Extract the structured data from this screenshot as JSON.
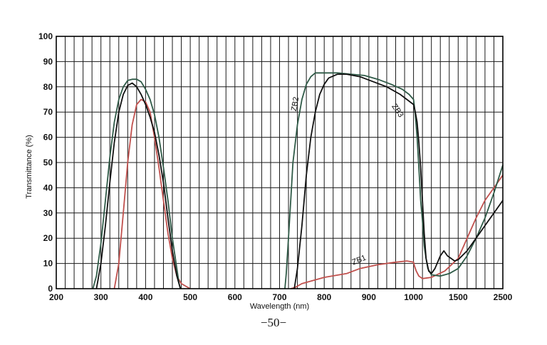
{
  "page_number": "−50−",
  "chart_data": {
    "type": "line",
    "title": "",
    "xlabel": "Wavelength (nm)",
    "ylabel": "Transmittance (%)",
    "ylim": [
      0,
      100
    ],
    "x_ticks": [
      "200",
      "300",
      "400",
      "500",
      "600",
      "700",
      "800",
      "900",
      "1000",
      "1500",
      "2500"
    ],
    "y_ticks": [
      "0",
      "10",
      "20",
      "30",
      "40",
      "50",
      "60",
      "70",
      "80",
      "90",
      "100"
    ],
    "grid": true,
    "colors": {
      "ZB1": "#c0504d",
      "ZB2": "#2f5a47",
      "ZB3": "#111111"
    },
    "series": [
      {
        "name": "ZB1",
        "segments": [
          [
            [
              330,
              0
            ],
            [
              340,
              10
            ],
            [
              350,
              30
            ],
            [
              360,
              50
            ],
            [
              370,
              65
            ],
            [
              380,
              73
            ],
            [
              390,
              75
            ],
            [
              400,
              74
            ],
            [
              410,
              70
            ],
            [
              420,
              60
            ],
            [
              430,
              48
            ],
            [
              440,
              35
            ],
            [
              450,
              22
            ],
            [
              460,
              12
            ],
            [
              470,
              5
            ],
            [
              480,
              2
            ],
            [
              490,
              1
            ],
            [
              500,
              0
            ]
          ],
          [
            [
              725,
              0
            ],
            [
              735,
              0.5
            ],
            [
              750,
              2
            ],
            [
              780,
              3.5
            ],
            [
              800,
              4.5
            ],
            [
              850,
              6
            ],
            [
              880,
              8
            ],
            [
              920,
              9.5
            ],
            [
              960,
              10.5
            ],
            [
              985,
              11
            ],
            [
              1000,
              10.5
            ],
            [
              1010,
              9
            ],
            [
              1030,
              7
            ],
            [
              1060,
              5
            ],
            [
              1100,
              4
            ],
            [
              1200,
              4.5
            ],
            [
              1350,
              7
            ],
            [
              1500,
              12
            ],
            [
              1700,
              20
            ],
            [
              1900,
              28
            ],
            [
              2100,
              35
            ],
            [
              2300,
              40
            ],
            [
              2500,
              45
            ]
          ]
        ]
      },
      {
        "name": "ZB2",
        "segments": [
          [
            [
              282,
              0
            ],
            [
              290,
              5
            ],
            [
              300,
              18
            ],
            [
              310,
              35
            ],
            [
              320,
              52
            ],
            [
              330,
              66
            ],
            [
              340,
              75
            ],
            [
              350,
              80
            ],
            [
              360,
              82.5
            ],
            [
              370,
              83
            ],
            [
              380,
              83
            ],
            [
              390,
              82
            ],
            [
              400,
              79
            ],
            [
              410,
              75
            ],
            [
              420,
              69
            ],
            [
              430,
              60
            ],
            [
              440,
              48
            ],
            [
              450,
              35
            ],
            [
              460,
              20
            ],
            [
              470,
              8
            ],
            [
              475,
              2
            ],
            [
              478,
              0
            ]
          ],
          [
            [
              712,
              0
            ],
            [
              715,
              6
            ],
            [
              720,
              20
            ],
            [
              725,
              35
            ],
            [
              730,
              50
            ],
            [
              740,
              65
            ],
            [
              750,
              75
            ],
            [
              760,
              81
            ],
            [
              770,
              84
            ],
            [
              780,
              85.5
            ],
            [
              790,
              85.5
            ],
            [
              800,
              85.5
            ],
            [
              830,
              85.5
            ],
            [
              860,
              85
            ],
            [
              890,
              84.5
            ],
            [
              920,
              83
            ],
            [
              950,
              81
            ],
            [
              975,
              79
            ],
            [
              990,
              77
            ],
            [
              1000,
              75
            ],
            [
              1010,
              72
            ],
            [
              1020,
              69
            ],
            [
              1040,
              60
            ],
            [
              1060,
              48
            ],
            [
              1080,
              35
            ],
            [
              1100,
              27
            ],
            [
              1110,
              22
            ],
            [
              1120,
              17
            ],
            [
              1140,
              12
            ],
            [
              1160,
              8
            ],
            [
              1200,
              5.5
            ],
            [
              1300,
              5
            ],
            [
              1400,
              6
            ],
            [
              1500,
              8
            ],
            [
              1700,
              13
            ],
            [
              1900,
              20
            ],
            [
              2100,
              28
            ],
            [
              2300,
              38
            ],
            [
              2500,
              49
            ]
          ]
        ]
      },
      {
        "name": "ZB3",
        "segments": [
          [
            [
              290,
              0
            ],
            [
              300,
              10
            ],
            [
              310,
              25
            ],
            [
              320,
              42
            ],
            [
              330,
              58
            ],
            [
              340,
              70
            ],
            [
              350,
              77
            ],
            [
              360,
              80.5
            ],
            [
              370,
              81.5
            ],
            [
              380,
              80
            ],
            [
              390,
              77
            ],
            [
              400,
              73
            ],
            [
              410,
              68
            ],
            [
              420,
              62
            ],
            [
              430,
              53
            ],
            [
              440,
              42
            ],
            [
              450,
              28
            ],
            [
              460,
              15
            ],
            [
              470,
              5
            ],
            [
              478,
              0
            ]
          ],
          [
            [
              733,
              0
            ],
            [
              740,
              8
            ],
            [
              750,
              25
            ],
            [
              760,
              45
            ],
            [
              770,
              60
            ],
            [
              780,
              70
            ],
            [
              790,
              77
            ],
            [
              800,
              81
            ],
            [
              810,
              83.5
            ],
            [
              830,
              85
            ],
            [
              850,
              85
            ],
            [
              880,
              84
            ],
            [
              910,
              82
            ],
            [
              940,
              80
            ],
            [
              970,
              77
            ],
            [
              1000,
              73
            ],
            [
              1020,
              70
            ],
            [
              1040,
              66
            ],
            [
              1060,
              58
            ],
            [
              1080,
              48
            ],
            [
              1100,
              35
            ],
            [
              1120,
              22
            ],
            [
              1140,
              12
            ],
            [
              1170,
              7
            ],
            [
              1200,
              6
            ],
            [
              1240,
              8
            ],
            [
              1300,
              13
            ],
            [
              1340,
              15
            ],
            [
              1380,
              13
            ],
            [
              1420,
              12
            ],
            [
              1460,
              11
            ],
            [
              1500,
              11.5
            ],
            [
              1700,
              15
            ],
            [
              1900,
              20
            ],
            [
              2100,
              25
            ],
            [
              2300,
              30
            ],
            [
              2500,
              35
            ]
          ]
        ]
      }
    ]
  }
}
